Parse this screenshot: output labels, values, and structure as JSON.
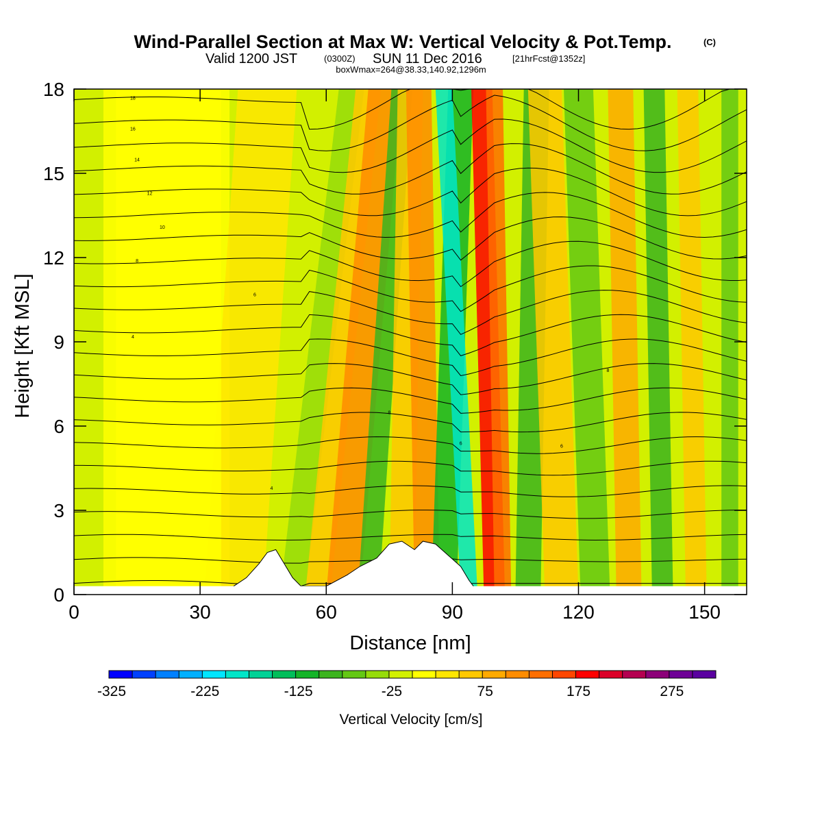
{
  "chart_data": {
    "type": "heatmap",
    "title": "Wind-Parallel Section at Max W: Vertical Velocity & Pot.Temp.",
    "title_mark": "(C)",
    "subtitle_main": "Valid 1200 JST",
    "subtitle_z": "(0300Z)",
    "subtitle_date": "SUN 11 Dec 2016",
    "subtitle_fcst": "[21hrFcst@1352z]",
    "subtitle_box": "boxWmax=264@38.33,140.92,1296m",
    "xlabel": "Distance [nm]",
    "ylabel": "Height [Kft MSL]",
    "xlim": [
      0,
      160
    ],
    "ylim": [
      0,
      18
    ],
    "xticks": [
      0,
      30,
      60,
      90,
      120,
      150
    ],
    "yticks": [
      0,
      3,
      6,
      9,
      12,
      15,
      18
    ],
    "colorbar": {
      "label": "Vertical Velocity [cm/s]",
      "min": -325,
      "max": 325,
      "step": 25,
      "tick_labels": [
        "-325",
        "-225",
        "-125",
        "-25",
        "75",
        "175",
        "275"
      ],
      "tick_values": [
        -325,
        -225,
        -125,
        -25,
        75,
        175,
        275
      ],
      "colors": [
        "#0000ff",
        "#0040ff",
        "#0080ff",
        "#00b0ff",
        "#00e6ff",
        "#00e6c8",
        "#00d296",
        "#00be5a",
        "#14b428",
        "#3cb41e",
        "#64c814",
        "#96dc0a",
        "#d2f000",
        "#ffff00",
        "#ffe600",
        "#ffc800",
        "#ffaa00",
        "#ff8c00",
        "#ff6e00",
        "#ff4600",
        "#ff0000",
        "#dc0028",
        "#b40050",
        "#8c0078",
        "#6e0096",
        "#5a00a0"
      ]
    },
    "terrain_kft": [
      [
        38,
        0.3
      ],
      [
        41,
        0.6
      ],
      [
        44,
        1.1
      ],
      [
        46,
        1.5
      ],
      [
        48,
        1.6
      ],
      [
        50,
        1.1
      ],
      [
        52,
        0.6
      ],
      [
        54,
        0.3
      ],
      [
        60,
        0.3
      ],
      [
        65,
        0.7
      ],
      [
        68,
        1.0
      ],
      [
        72,
        1.3
      ],
      [
        75,
        1.8
      ],
      [
        78,
        1.9
      ],
      [
        81,
        1.6
      ],
      [
        83,
        1.9
      ],
      [
        86,
        1.8
      ],
      [
        89,
        1.4
      ],
      [
        92,
        1.0
      ],
      [
        94,
        0.5
      ],
      [
        95,
        0.3
      ]
    ],
    "theta_contour_labels": [
      {
        "x": 14,
        "y": 17.7,
        "text": "18"
      },
      {
        "x": 14,
        "y": 16.6,
        "text": "16"
      },
      {
        "x": 15,
        "y": 15.5,
        "text": "14"
      },
      {
        "x": 18,
        "y": 14.3,
        "text": "12"
      },
      {
        "x": 21,
        "y": 13.1,
        "text": "10"
      },
      {
        "x": 15,
        "y": 11.9,
        "text": "8"
      },
      {
        "x": 43,
        "y": 10.7,
        "text": "6"
      },
      {
        "x": 14,
        "y": 9.2,
        "text": "4"
      },
      {
        "x": 75,
        "y": 6.5,
        "text": "8"
      },
      {
        "x": 47,
        "y": 3.8,
        "text": "4"
      },
      {
        "x": 92,
        "y": 5.4,
        "text": "6"
      },
      {
        "x": 127,
        "y": 8.0,
        "text": "8"
      },
      {
        "x": 116,
        "y": 5.3,
        "text": "6"
      }
    ]
  }
}
